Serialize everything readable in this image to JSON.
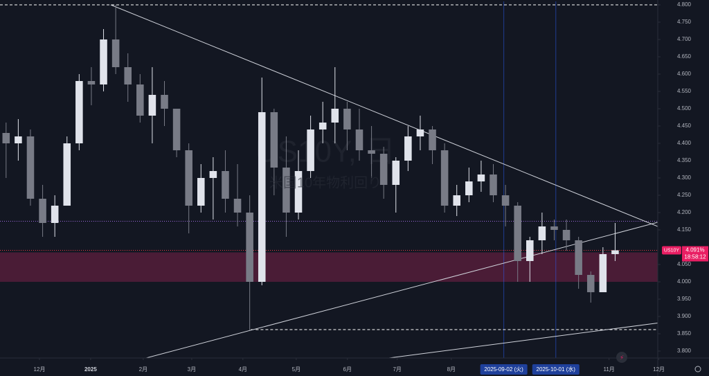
{
  "chart_data": {
    "type": "candlestick",
    "symbol": "US10Y",
    "watermark": "US10Y, 日",
    "watermark_subtitle": "米国10年物利回り",
    "x": [
      0.5,
      1.5,
      2.5,
      3.5,
      4.5,
      5.5,
      6.5,
      7.5,
      8.5,
      9.5,
      10.5,
      11.5,
      12.5,
      13.5,
      14.5,
      15.5,
      16.5,
      17.5,
      18.5,
      19.5,
      20.5,
      21.5,
      22.5,
      23.5,
      24.5,
      25.5,
      26.5,
      27.5,
      28.5,
      29.5,
      30.5,
      31.5,
      32.5,
      33.5,
      34.5,
      35.5,
      36.5,
      37.5,
      38.5,
      39.5,
      40.5,
      41.5,
      42.5,
      43.5,
      44.5,
      45.5,
      46.5,
      47.5,
      48.5,
      49.5,
      50.5
    ],
    "open": [
      4.43,
      4.4,
      4.42,
      4.24,
      4.17,
      4.22,
      4.4,
      4.58,
      4.57,
      4.7,
      4.62,
      4.57,
      4.48,
      4.54,
      4.5,
      4.38,
      4.22,
      4.3,
      4.32,
      4.24,
      4.2,
      4.0,
      4.49,
      4.33,
      4.2,
      4.32,
      4.44,
      4.46,
      4.5,
      4.44,
      4.38,
      4.37,
      4.28,
      4.35,
      4.42,
      4.44,
      4.38,
      4.22,
      4.25,
      4.29,
      4.31,
      4.25,
      4.22,
      4.06,
      4.12,
      4.16,
      4.15,
      4.12,
      4.02,
      3.97,
      4.08
    ],
    "high": [
      4.46,
      4.47,
      4.44,
      4.28,
      4.25,
      4.42,
      4.6,
      4.62,
      4.73,
      4.8,
      4.66,
      4.6,
      4.62,
      4.58,
      4.5,
      4.4,
      4.34,
      4.36,
      4.38,
      4.34,
      4.25,
      4.59,
      4.5,
      4.42,
      4.38,
      4.48,
      4.52,
      4.62,
      4.52,
      4.5,
      4.45,
      4.39,
      4.36,
      4.45,
      4.48,
      4.45,
      4.4,
      4.28,
      4.33,
      4.35,
      4.34,
      4.28,
      4.23,
      4.13,
      4.2,
      4.18,
      4.18,
      4.13,
      4.03,
      4.1,
      4.17
    ],
    "low": [
      4.3,
      4.35,
      4.22,
      4.13,
      4.13,
      4.22,
      4.38,
      4.51,
      4.55,
      4.6,
      4.52,
      4.46,
      4.4,
      4.45,
      4.36,
      4.14,
      4.2,
      4.18,
      4.2,
      4.16,
      3.86,
      3.99,
      4.25,
      4.13,
      4.18,
      4.3,
      4.4,
      4.4,
      4.38,
      4.35,
      4.3,
      4.24,
      4.2,
      4.32,
      4.38,
      4.34,
      4.2,
      4.19,
      4.23,
      4.26,
      4.23,
      4.16,
      4.0,
      4.0,
      4.08,
      4.12,
      4.09,
      3.98,
      3.94,
      3.97,
      4.06
    ],
    "close": [
      4.4,
      4.42,
      4.24,
      4.17,
      4.22,
      4.4,
      4.58,
      4.57,
      4.7,
      4.62,
      4.57,
      4.48,
      4.54,
      4.5,
      4.38,
      4.22,
      4.3,
      4.32,
      4.24,
      4.2,
      4.0,
      4.49,
      4.33,
      4.2,
      4.32,
      4.44,
      4.46,
      4.5,
      4.44,
      4.38,
      4.37,
      4.28,
      4.35,
      4.42,
      4.44,
      4.38,
      4.22,
      4.25,
      4.29,
      4.31,
      4.25,
      4.22,
      4.06,
      4.12,
      4.16,
      4.15,
      4.12,
      4.02,
      3.97,
      4.08,
      4.091
    ],
    "up_color": "#e0e3eb",
    "down_color": "#787b86",
    "xlim": [
      0,
      54
    ],
    "xticks": [
      {
        "value": 3.24,
        "label": "12月"
      },
      {
        "value": 7.44,
        "label": "2025"
      },
      {
        "value": 11.76,
        "label": "2月"
      },
      {
        "value": 15.74,
        "label": "3月"
      },
      {
        "value": 19.94,
        "label": "4月"
      },
      {
        "value": 24.32,
        "label": "5月"
      },
      {
        "value": 28.52,
        "label": "6月"
      },
      {
        "value": 32.61,
        "label": "7月"
      },
      {
        "value": 37.05,
        "label": "8月"
      },
      {
        "value": 41.36,
        "label": "2025-09-02 (火)"
      },
      {
        "value": 45.63,
        "label": "2025-10-01 (水)"
      },
      {
        "value": 50.0,
        "label": "11月"
      },
      {
        "value": 54.09,
        "label": "12月"
      }
    ],
    "highlighted_xticks": [
      9,
      10
    ],
    "ylim": [
      3.78,
      4.81
    ],
    "yticks": [
      {
        "value": 4.8,
        "label": "4.800"
      },
      {
        "value": 4.75,
        "label": "4.750"
      },
      {
        "value": 4.7,
        "label": "4.700"
      },
      {
        "value": 4.65,
        "label": "4.650"
      },
      {
        "value": 4.6,
        "label": "4.600"
      },
      {
        "value": 4.55,
        "label": "4.550"
      },
      {
        "value": 4.5,
        "label": "4.500"
      },
      {
        "value": 4.45,
        "label": "4.450"
      },
      {
        "value": 4.4,
        "label": "4.400"
      },
      {
        "value": 4.35,
        "label": "4.350"
      },
      {
        "value": 4.3,
        "label": "4.300"
      },
      {
        "value": 4.25,
        "label": "4.250"
      },
      {
        "value": 4.2,
        "label": "4.200"
      },
      {
        "value": 4.15,
        "label": "4.150"
      },
      {
        "value": 4.05,
        "label": "4.050"
      },
      {
        "value": 4.0,
        "label": "4.000"
      },
      {
        "value": 3.95,
        "label": "3.950"
      },
      {
        "value": 3.9,
        "label": "3.900"
      },
      {
        "value": 3.85,
        "label": "3.850"
      },
      {
        "value": 3.8,
        "label": "3.800"
      }
    ],
    "last_price": {
      "value": 4.091,
      "label": "4.091%"
    },
    "countdown": "18:58:12",
    "zone": [
      4.0,
      4.085
    ],
    "dashed_levels": [
      {
        "value": 4.8,
        "from": 0
      },
      {
        "value": 3.862,
        "from": 20.6
      }
    ],
    "dotted_levels": [
      4.175
    ],
    "trend_lines": [
      {
        "from": [
          9.09,
          4.8
        ],
        "to": [
          54,
          4.16
        ]
      },
      {
        "from": [
          10.5,
          3.766
        ],
        "to": [
          54,
          4.172
        ]
      },
      {
        "from": [
          28.88,
          3.766
        ],
        "to": [
          54,
          3.881
        ]
      }
    ]
  }
}
